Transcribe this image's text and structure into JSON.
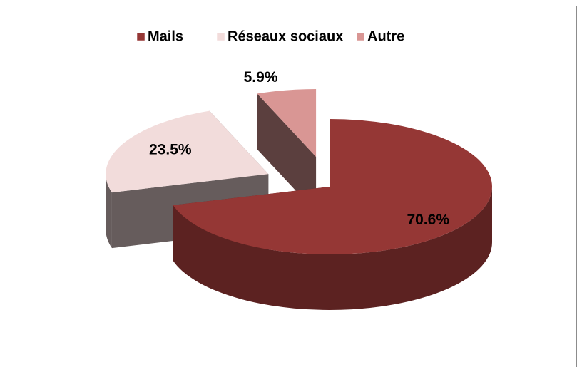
{
  "chart_data": {
    "type": "pie",
    "categories": [
      "Mails",
      "Réseaux sociaux",
      "Autre"
    ],
    "values": [
      70.6,
      23.5,
      5.9
    ],
    "value_labels": [
      "70.6%",
      "23.5%",
      "5.9%"
    ],
    "colors": [
      "#953735",
      "#f2dcdb",
      "#d99694"
    ],
    "legend": "top"
  }
}
